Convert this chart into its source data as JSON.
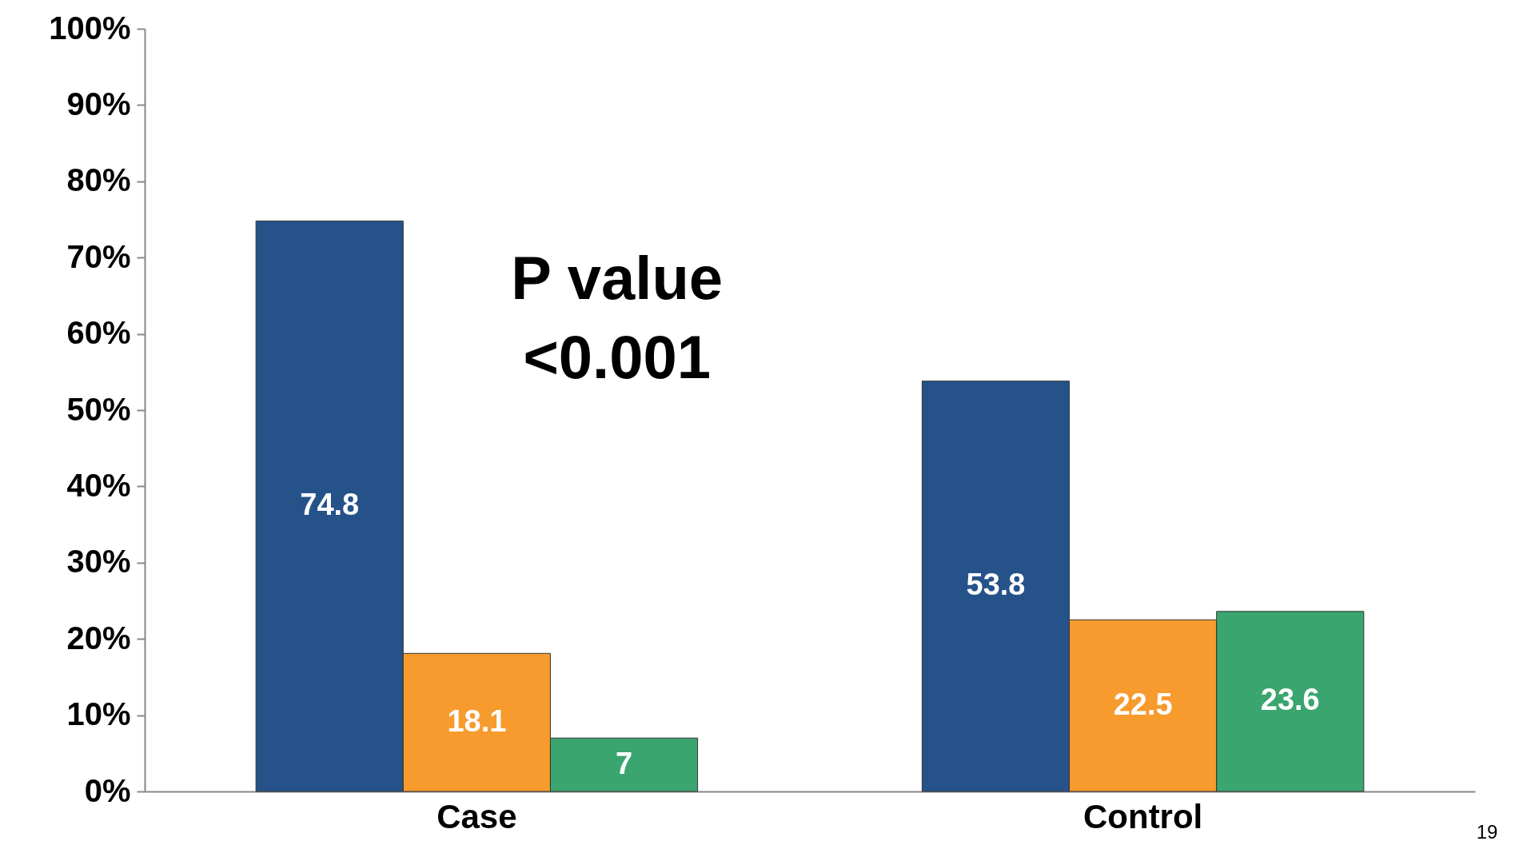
{
  "chart_data": {
    "type": "bar",
    "categories": [
      "Case",
      "Control"
    ],
    "series": [
      {
        "color": "#26528a",
        "values": [
          74.8,
          53.8
        ]
      },
      {
        "color": "#f79b2e",
        "values": [
          18.1,
          22.5
        ]
      },
      {
        "color": "#3aa56f",
        "values": [
          7,
          23.6
        ]
      }
    ],
    "ylim": [
      0,
      100
    ],
    "yticks": [
      {
        "value": 0,
        "label": "0%"
      },
      {
        "value": 10,
        "label": "10%"
      },
      {
        "value": 20,
        "label": "20%"
      },
      {
        "value": 30,
        "label": "30%"
      },
      {
        "value": 40,
        "label": "40%"
      },
      {
        "value": 50,
        "label": "50%"
      },
      {
        "value": 60,
        "label": "60%"
      },
      {
        "value": 70,
        "label": "70%"
      },
      {
        "value": 80,
        "label": "80%"
      },
      {
        "value": 90,
        "label": "90%"
      },
      {
        "value": 100,
        "label": "100%"
      }
    ],
    "data_labels": true,
    "grid": false,
    "legend": false,
    "annotations": [
      "P value\n<0.001",
      "19"
    ]
  }
}
